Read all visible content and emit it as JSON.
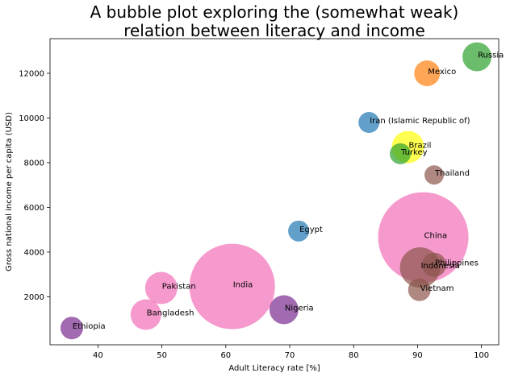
{
  "chart_data": {
    "type": "scatter",
    "title": [
      "A bubble plot exploring the (somewhat weak)",
      "relation between literacy and income"
    ],
    "xlabel": "Adult Literacy rate [%]",
    "ylabel": "Gross national income per capita (USD)",
    "xlim": [
      32.5,
      102.7
    ],
    "ylim": [
      -150,
      13550
    ],
    "xticks": [
      40,
      50,
      60,
      70,
      80,
      90,
      100
    ],
    "yticks": [
      2000,
      4000,
      6000,
      8000,
      10000,
      12000
    ],
    "grid": false,
    "legend": "none",
    "colors": {
      "blue": "#1f77b4",
      "orange": "#ff7f0e",
      "green": "#2ca02c",
      "brown": "#8c564b",
      "pink": "#f26fb8",
      "purple": "#7b2b8f",
      "yellow": "#ffff33"
    },
    "points": [
      {
        "label": "Russia",
        "x": 99.3,
        "y": 12740,
        "r": 18,
        "color": "green"
      },
      {
        "label": "Mexico",
        "x": 91.5,
        "y": 12000,
        "r": 16,
        "color": "orange"
      },
      {
        "label": "Iran (Islamic Republic of)",
        "x": 82.4,
        "y": 9800,
        "r": 13,
        "color": "blue"
      },
      {
        "label": "Brazil",
        "x": 88.5,
        "y": 8700,
        "r": 20,
        "color": "yellow"
      },
      {
        "label": "Turkey",
        "x": 87.3,
        "y": 8400,
        "r": 13,
        "color": "green"
      },
      {
        "label": "Thailand",
        "x": 92.6,
        "y": 7450,
        "r": 12,
        "color": "brown"
      },
      {
        "label": "Egypt",
        "x": 71.4,
        "y": 4940,
        "r": 13,
        "color": "blue"
      },
      {
        "label": "China",
        "x": 90.9,
        "y": 4660,
        "r": 56,
        "color": "pink"
      },
      {
        "label": "Philippines",
        "x": 92.6,
        "y": 3430,
        "r": 15,
        "color": "brown"
      },
      {
        "label": "Indonesia",
        "x": 90.4,
        "y": 3310,
        "r": 25,
        "color": "brown"
      },
      {
        "label": "Vietnam",
        "x": 90.3,
        "y": 2310,
        "r": 14,
        "color": "brown"
      },
      {
        "label": "Pakistan",
        "x": 49.9,
        "y": 2390,
        "r": 20,
        "color": "pink"
      },
      {
        "label": "India",
        "x": 61.0,
        "y": 2460,
        "r": 53,
        "color": "pink"
      },
      {
        "label": "Nigeria",
        "x": 69.1,
        "y": 1420,
        "r": 18,
        "color": "purple"
      },
      {
        "label": "Bangladesh",
        "x": 47.5,
        "y": 1200,
        "r": 19,
        "color": "pink"
      },
      {
        "label": "Ethiopia",
        "x": 35.9,
        "y": 600,
        "r": 14,
        "color": "purple"
      }
    ]
  }
}
